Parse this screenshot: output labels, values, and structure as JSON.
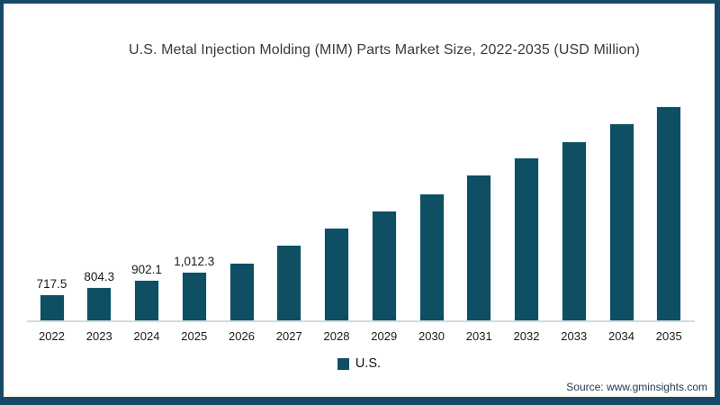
{
  "frame": {
    "border_color": "#174a68",
    "background": "#ffffff",
    "bottom_accent_line_color": "#fdf8e3"
  },
  "chart_data": {
    "type": "bar",
    "title": "U.S. Metal Injection Molding (MIM) Parts Market Size, 2022-2035 (USD Million)",
    "xlabel": "",
    "ylabel": "",
    "categories": [
      "2022",
      "2023",
      "2024",
      "2025",
      "2026",
      "2027",
      "2028",
      "2029",
      "2030",
      "2031",
      "2032",
      "2033",
      "2034",
      "2035"
    ],
    "series": [
      {
        "name": "U.S.",
        "color": "#0e4f63",
        "values": [
          717.5,
          804.3,
          902.1,
          1012.3,
          1125,
          1360,
          1590,
          1810,
          2035,
          2280,
          2505,
          2715,
          2960,
          3180
        ],
        "data_labels": [
          "717.5",
          "804.3",
          "902.1",
          "1,012.3",
          "",
          "",
          "",
          "",
          "",
          "",
          "",
          "",
          "",
          ""
        ]
      }
    ],
    "ylim": [
      384,
      3500
    ],
    "grid": false,
    "axis_line_color": "#d9d9d9",
    "legend": {
      "position": "bottom-center",
      "entries": [
        {
          "label": "U.S.",
          "color": "#0e4f63"
        }
      ]
    },
    "source": "Source: www.gminsights.com"
  }
}
